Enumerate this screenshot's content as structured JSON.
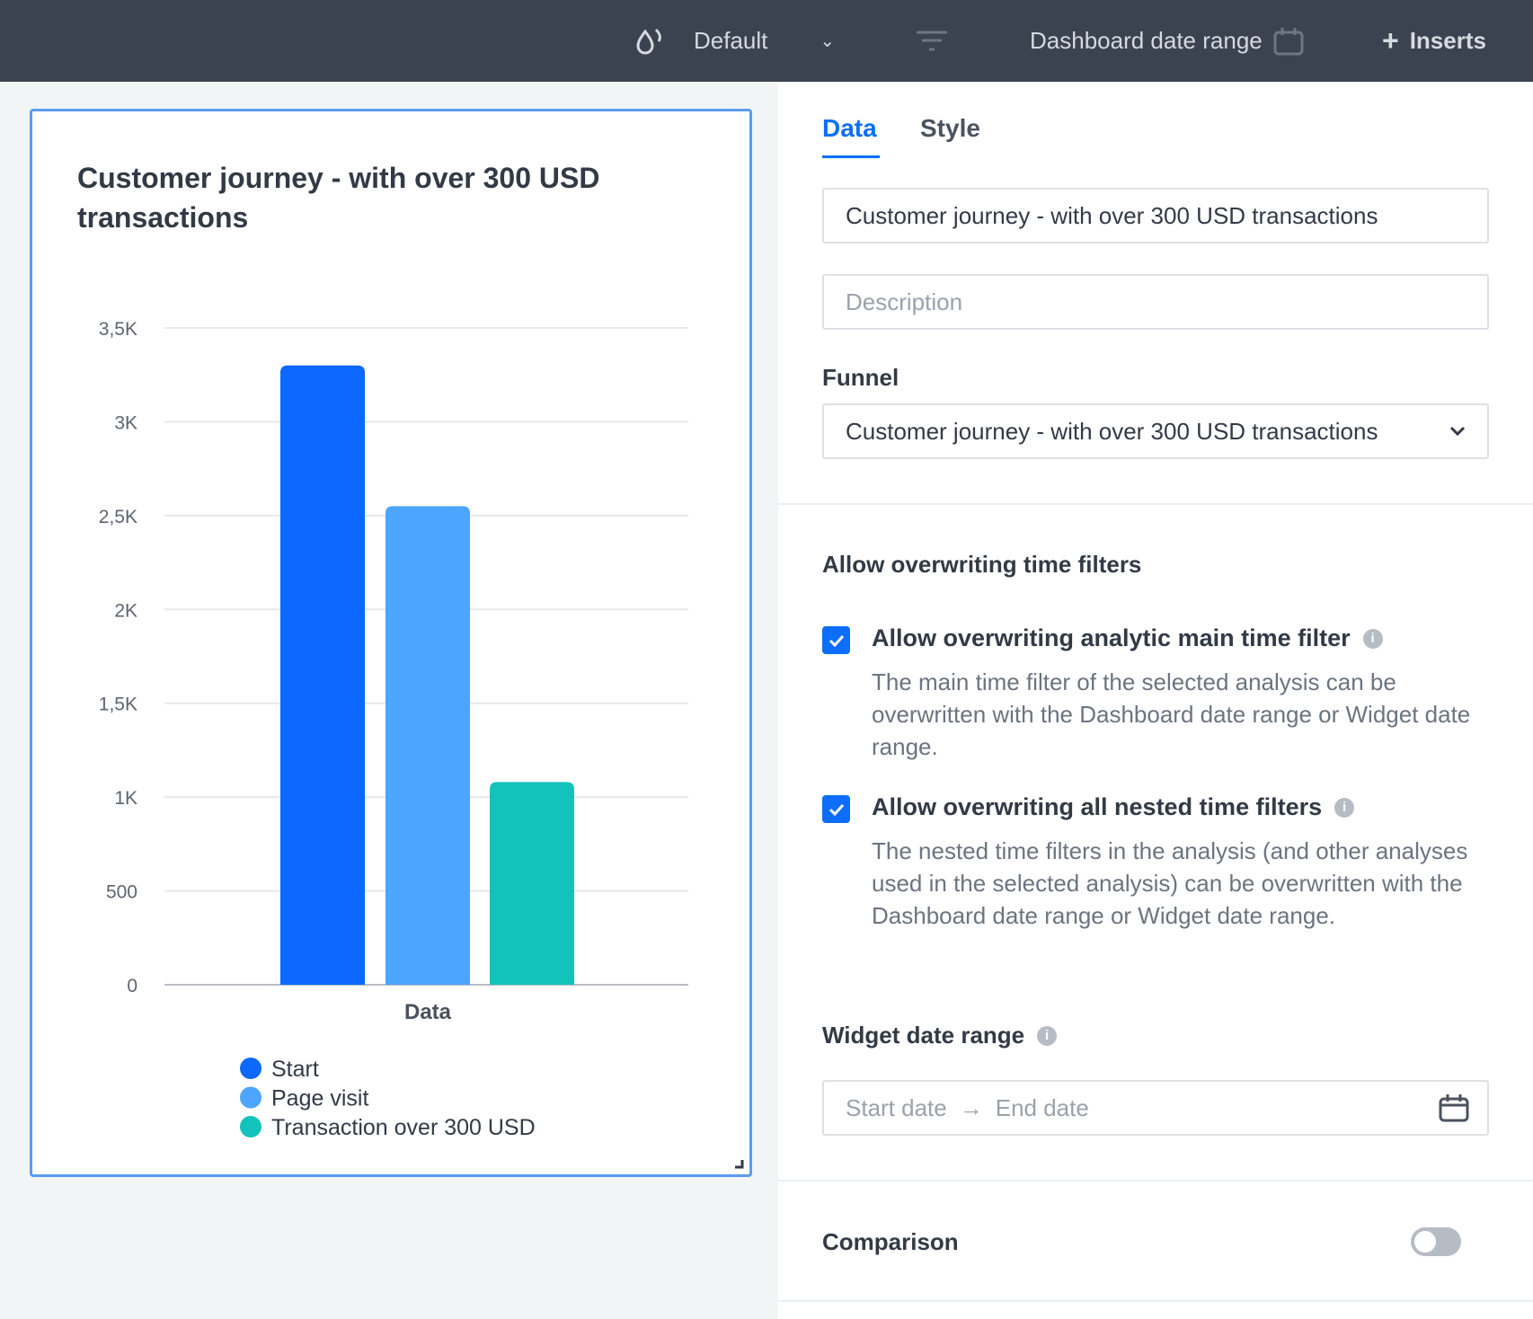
{
  "header": {
    "view_label": "Default",
    "date_range_label": "Dashboard date range",
    "inserts_label": "Inserts"
  },
  "widget": {
    "title": "Customer journey - with over 300 USD transactions"
  },
  "chart_data": {
    "type": "bar",
    "title": "Customer journey - with over 300 USD transactions",
    "categories": [
      "Data"
    ],
    "xlabel": "Data",
    "ylabel": "",
    "ylim": [
      0,
      3500
    ],
    "yticks": [
      "0",
      "500",
      "1K",
      "1,5K",
      "2K",
      "2,5K",
      "3K",
      "3,5K"
    ],
    "grid": true,
    "legend_position": "bottom-left",
    "series": [
      {
        "name": "Start",
        "values": [
          3300
        ],
        "color": "#0c68ff"
      },
      {
        "name": "Page visit",
        "values": [
          2550
        ],
        "color": "#4ca5ff"
      },
      {
        "name": "Transaction over 300 USD",
        "values": [
          1080
        ],
        "color": "#13c3bb"
      }
    ]
  },
  "panel": {
    "tabs": [
      {
        "label": "Data"
      },
      {
        "label": "Style"
      }
    ],
    "title_value": "Customer journey - with over 300 USD transactions",
    "description_placeholder": "Description",
    "funnel_label": "Funnel",
    "funnel_value": "Customer journey - with over 300 USD transactions",
    "time_filters_heading": "Allow overwriting time filters",
    "option1_label": "Allow overwriting analytic main time filter",
    "option1_desc": "The main time filter of the selected analysis can be overwritten with the Dashboard date range or Widget date range.",
    "option2_label": "Allow overwriting all nested time filters",
    "option2_desc": "The nested time filters in the analysis (and other analyses used in the selected analysis) can be overwritten with the Dashboard date range or Widget date range.",
    "widget_date_label": "Widget date range",
    "start_placeholder": "Start date",
    "end_placeholder": "End date",
    "comparison_label": "Comparison",
    "comparison_on": false
  }
}
